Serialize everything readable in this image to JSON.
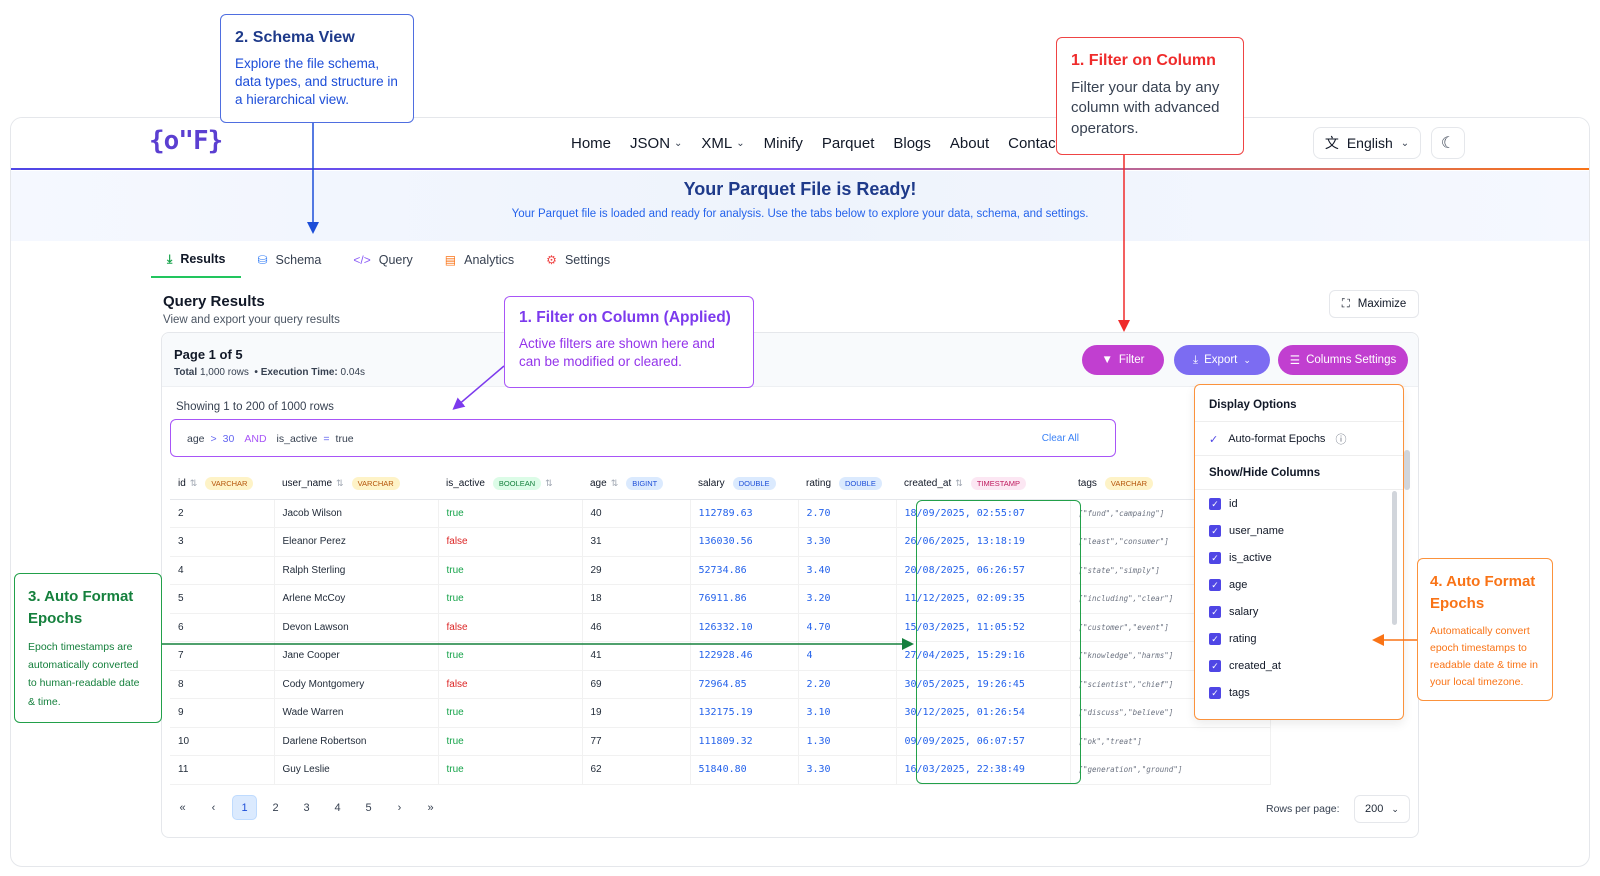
{
  "header": {
    "logo": "{o\"F}",
    "nav": [
      "Home",
      "JSON",
      "XML",
      "Minify",
      "Parquet",
      "Blogs",
      "About",
      "Contact"
    ],
    "language": "English"
  },
  "banner": {
    "title": "Your Parquet File is Ready!",
    "subtitle": "Your Parquet file is loaded and ready for analysis. Use the tabs below to explore your data, schema, and settings."
  },
  "tabs": [
    "Results",
    "Schema",
    "Query",
    "Analytics",
    "Settings"
  ],
  "results": {
    "title": "Query Results",
    "subtitle": "View and export your query results",
    "maximize": "Maximize",
    "page_label": "Page 1 of 5",
    "total_label": "Total",
    "total_value": "1,000 rows",
    "exec_label": "• Execution Time:",
    "exec_value": "0.04s",
    "filter_btn": "Filter",
    "export_btn": "Export",
    "columns_btn": "Columns Settings",
    "showing": "Showing 1 to 200 of 1000 rows",
    "filter": {
      "col1": "age",
      "op1": ">",
      "val1": "30",
      "and": "AND",
      "col2": "is_active",
      "op2": "=",
      "val2": "true",
      "clear": "Clear All"
    },
    "columns": [
      {
        "name": "id",
        "type": "VARCHAR"
      },
      {
        "name": "user_name",
        "type": "VARCHAR"
      },
      {
        "name": "is_active",
        "type": "BOOLEAN"
      },
      {
        "name": "age",
        "type": "BIGINT"
      },
      {
        "name": "salary",
        "type": "DOUBLE"
      },
      {
        "name": "rating",
        "type": "DOUBLE"
      },
      {
        "name": "created_at",
        "type": "TIMESTAMP"
      },
      {
        "name": "tags",
        "type": "VARCHAR"
      }
    ],
    "rows": [
      [
        "2",
        "Jacob Wilson",
        "true",
        "40",
        "112789.63",
        "2.70",
        "18/09/2025, 02:55:07",
        "[\"fund\",\"campaing\"]"
      ],
      [
        "3",
        "Eleanor Perez",
        "false",
        "31",
        "136030.56",
        "3.30",
        "26/06/2025, 13:18:19",
        "[\"least\",\"consumer\"]"
      ],
      [
        "4",
        "Ralph Sterling",
        "true",
        "29",
        "52734.86",
        "3.40",
        "20/08/2025, 06:26:57",
        "[\"state\",\"simply\"]"
      ],
      [
        "5",
        "Arlene McCoy",
        "true",
        "18",
        "76911.86",
        "3.20",
        "11/12/2025, 02:09:35",
        "[\"including\",\"clear\"]"
      ],
      [
        "6",
        "Devon Lawson",
        "false",
        "46",
        "126332.10",
        "4.70",
        "15/03/2025, 11:05:52",
        "[\"customer\",\"event\"]"
      ],
      [
        "7",
        "Jane Cooper",
        "true",
        "41",
        "122928.46",
        "4",
        "27/04/2025, 15:29:16",
        "[\"knowledge\",\"harms\"]"
      ],
      [
        "8",
        "Cody Montgomery",
        "false",
        "69",
        "72964.85",
        "2.20",
        "30/05/2025, 19:26:45",
        "[\"scientist\",\"chief\"]"
      ],
      [
        "9",
        "Wade Warren",
        "true",
        "19",
        "132175.19",
        "3.10",
        "30/12/2025, 01:26:54",
        "[\"discuss\",\"believe\"]"
      ],
      [
        "10",
        "Darlene Robertson",
        "true",
        "77",
        "111809.32",
        "1.30",
        "09/09/2025, 06:07:57",
        "[\"ok\",\"treat\"]"
      ],
      [
        "11",
        "Guy Leslie",
        "true",
        "62",
        "51840.80",
        "3.30",
        "16/03/2025, 22:38:49",
        "[\"generation\",\"ground\"]"
      ]
    ],
    "pages": [
      "1",
      "2",
      "3",
      "4",
      "5"
    ],
    "rows_per_page_label": "Rows per page:",
    "rows_per_page": "200"
  },
  "column_settings": {
    "display_heading": "Display Options",
    "auto_format": "Auto-format Epochs",
    "showhide_heading": "Show/Hide Columns",
    "columns": [
      "id",
      "user_name",
      "is_active",
      "age",
      "salary",
      "rating",
      "created_at",
      "tags"
    ]
  },
  "annotations": {
    "schema": {
      "title": "2. Schema View",
      "text": "Explore the file schema, data types, and structure in a hierarchical view."
    },
    "filter": {
      "title": "1. Filter on Column",
      "text": "Filter your data by any column with advanced operators."
    },
    "applied": {
      "title": "1. Filter on Column (Applied)",
      "text": "Active filters are shown here and can be modified or cleared."
    },
    "auto3": {
      "title": "3. Auto Format Epochs",
      "text": "Epoch timestamps are automatically converted to human-readable date & time."
    },
    "auto4": {
      "title": "4. Auto Format Epochs",
      "text": "Automatically convert epoch timestamps to readable date & time in your local timezone."
    }
  },
  "colors": {
    "accent_purple": "#c13fd0",
    "export_violet": "#7c6cf2",
    "annotation_red": "#ef4444",
    "annotation_green": "#22a04a",
    "annotation_orange": "#fb923c",
    "annotation_blue": "#4f6ee0"
  }
}
